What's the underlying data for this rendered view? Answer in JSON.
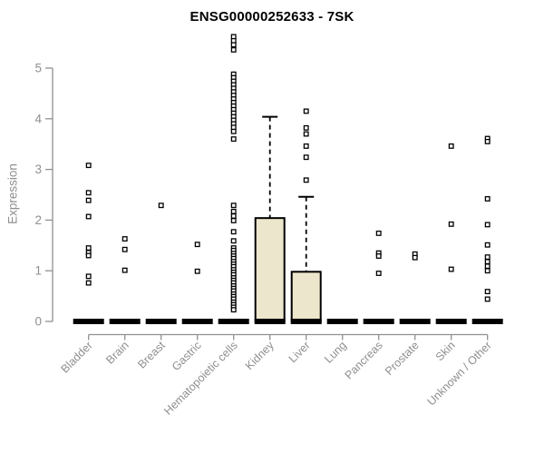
{
  "title": "ENSG00000252633 - 7SK",
  "colors": {
    "box_fill": "#ece6cc",
    "box_stroke": "#000000",
    "median_bar": "#000000",
    "outlier_stroke": "#000000",
    "outlier_fill": "#ffffff",
    "axis_line": "#909090",
    "axis_text": "#8f8f8f",
    "title_text": "#000000",
    "background": "#ffffff"
  },
  "chart_data": {
    "type": "boxplot",
    "title": "ENSG00000252633 - 7SK",
    "xlabel": "",
    "ylabel": "Expression",
    "ylim": [
      0,
      5.8
    ],
    "yticks": [
      0,
      1,
      2,
      3,
      4,
      5
    ],
    "grid": false,
    "legend": false,
    "categories": [
      "Bladder",
      "Brain",
      "Breast",
      "Gastric",
      "Hematopoietic cells",
      "Kidney",
      "Liver",
      "Lung",
      "Pancreas",
      "Prostate",
      "Skin",
      "Unknown / Other"
    ],
    "series": [
      {
        "name": "Bladder",
        "whisker_low": 0,
        "q1": 0,
        "median": 0,
        "q3": 0,
        "whisker_high": 0,
        "outliers": [
          3.08,
          2.54,
          2.39,
          2.07,
          1.45,
          1.36,
          1.3,
          0.89,
          0.76
        ]
      },
      {
        "name": "Brain",
        "whisker_low": 0,
        "q1": 0,
        "median": 0,
        "q3": 0,
        "whisker_high": 0,
        "outliers": [
          1.63,
          1.42,
          1.01
        ]
      },
      {
        "name": "Breast",
        "whisker_low": 0,
        "q1": 0,
        "median": 0,
        "q3": 0,
        "whisker_high": 0,
        "outliers": [
          2.29
        ]
      },
      {
        "name": "Gastric",
        "whisker_low": 0,
        "q1": 0,
        "median": 0,
        "q3": 0,
        "whisker_high": 0,
        "outliers": [
          1.52,
          0.99
        ]
      },
      {
        "name": "Hematopoietic cells",
        "whisker_low": 0,
        "q1": 0,
        "median": 0,
        "q3": 0,
        "whisker_high": 0,
        "outliers": [
          5.62,
          5.54,
          5.46,
          5.36,
          4.88,
          4.81,
          4.74,
          4.67,
          4.6,
          4.53,
          4.46,
          4.39,
          4.32,
          4.25,
          4.18,
          4.11,
          4.04,
          3.97,
          3.9,
          3.83,
          3.75,
          3.6,
          2.29,
          2.17,
          2.08,
          1.99,
          1.77,
          1.59,
          1.45,
          1.4,
          1.34,
          1.29,
          1.24,
          1.18,
          1.13,
          1.08,
          1.02,
          0.97,
          0.92,
          0.86,
          0.81,
          0.76,
          0.7,
          0.65,
          0.6,
          0.54,
          0.49,
          0.44,
          0.38,
          0.33,
          0.28,
          0.23
        ]
      },
      {
        "name": "Kidney",
        "whisker_low": 0,
        "q1": 0,
        "median": 0,
        "q3": 2.04,
        "whisker_high": 4.04,
        "outliers": []
      },
      {
        "name": "Liver",
        "whisker_low": 0,
        "q1": 0,
        "median": 0,
        "q3": 0.98,
        "whisker_high": 2.46,
        "outliers": [
          4.15,
          3.82,
          3.7,
          3.46,
          3.24,
          2.79
        ]
      },
      {
        "name": "Lung",
        "whisker_low": 0,
        "q1": 0,
        "median": 0,
        "q3": 0,
        "whisker_high": 0,
        "outliers": []
      },
      {
        "name": "Pancreas",
        "whisker_low": 0,
        "q1": 0,
        "median": 0,
        "q3": 0,
        "whisker_high": 0,
        "outliers": [
          1.74,
          1.35,
          1.29,
          0.95
        ]
      },
      {
        "name": "Prostate",
        "whisker_low": 0,
        "q1": 0,
        "median": 0,
        "q3": 0,
        "whisker_high": 0,
        "outliers": [
          1.33,
          1.26
        ]
      },
      {
        "name": "Skin",
        "whisker_low": 0,
        "q1": 0,
        "median": 0,
        "q3": 0,
        "whisker_high": 0,
        "outliers": [
          3.46,
          1.92,
          1.03
        ]
      },
      {
        "name": "Unknown / Other",
        "whisker_low": 0,
        "q1": 0,
        "median": 0,
        "q3": 0,
        "whisker_high": 0,
        "outliers": [
          3.61,
          3.55,
          2.42,
          1.91,
          1.51,
          1.27,
          1.18,
          1.09,
          1.0,
          0.59,
          0.44
        ]
      }
    ]
  }
}
